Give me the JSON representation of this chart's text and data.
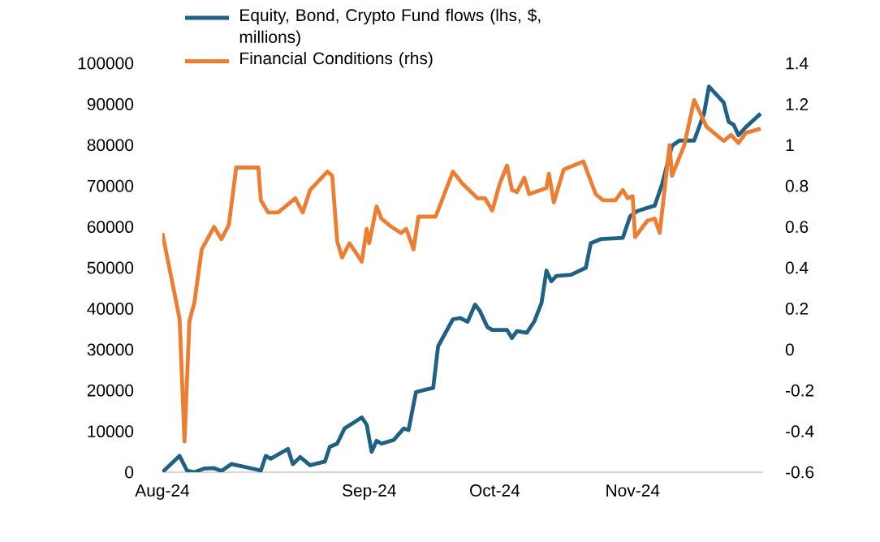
{
  "chart_data": {
    "type": "line",
    "categories": [
      "Aug-24",
      null,
      null,
      null,
      null,
      null,
      null,
      null,
      null,
      null,
      null,
      null,
      null,
      null,
      null,
      null,
      null,
      null,
      null,
      null,
      null,
      null,
      null,
      null,
      null,
      null,
      null,
      null,
      null,
      null,
      null,
      null,
      null,
      null,
      null,
      null,
      null,
      null,
      null,
      null,
      null,
      null,
      null,
      null,
      null,
      null,
      null,
      null,
      null,
      null,
      null,
      null,
      null,
      null,
      null,
      null,
      null,
      null,
      null,
      null,
      null,
      null,
      null,
      null,
      null,
      null,
      null,
      null,
      null,
      null,
      null,
      null,
      null,
      null,
      null,
      null,
      null,
      null,
      null,
      null,
      null,
      null,
      null,
      null,
      "Sep-24",
      null,
      null,
      null,
      null,
      null,
      null,
      null,
      null,
      null,
      null,
      null,
      null,
      null,
      null,
      null,
      null,
      null,
      null,
      null,
      null,
      null,
      null,
      null,
      null,
      null,
      null,
      null,
      null,
      null,
      null,
      null,
      null,
      null,
      null,
      null,
      null,
      null,
      null,
      null,
      null,
      null,
      null,
      null,
      null,
      null,
      null,
      null,
      null,
      null,
      null,
      "Oct-24",
      null,
      null,
      null,
      null,
      null,
      null,
      null,
      null,
      null,
      null,
      null,
      null,
      null,
      null,
      null,
      null,
      null,
      null,
      null,
      null,
      null,
      null,
      null,
      null,
      null,
      null,
      null,
      null,
      null,
      null,
      null,
      null,
      null,
      null,
      null,
      null,
      null,
      null,
      null,
      null,
      null,
      null,
      null,
      null,
      null,
      null,
      null,
      null,
      null,
      null,
      null,
      null,
      null,
      null,
      null,
      "Nov-24",
      null,
      null,
      null,
      null,
      null,
      null,
      null,
      null,
      null,
      null,
      null,
      null,
      null,
      null,
      null,
      null,
      null,
      null,
      null,
      null,
      null,
      null,
      null,
      null,
      null,
      null,
      null,
      null,
      null,
      null,
      null,
      null,
      null,
      null,
      null,
      null,
      null,
      null,
      null,
      null,
      null,
      null,
      null,
      null,
      null,
      null,
      null,
      null,
      null,
      null,
      null,
      null,
      null
    ],
    "ylim": [
      0,
      100000
    ],
    "yticks": [
      0,
      10000,
      20000,
      30000,
      40000,
      50000,
      60000,
      70000,
      80000,
      90000,
      100000
    ],
    "y2lim": [
      -0.6,
      1.4
    ],
    "y2ticks": [
      -0.6,
      -0.4,
      -0.2,
      0,
      0.2,
      0.4,
      0.6,
      0.8,
      1,
      1.2,
      1.4
    ],
    "legend": "top left",
    "series": [
      {
        "name": "Equity, Bond, Crypto Fund flows (lhs, $, millions)",
        "color": "#1f6185",
        "values": [
          0,
          null,
          null,
          null,
          null,
          null,
          null,
          4000,
          null,
          null,
          400,
          null,
          null,
          0,
          null,
          null,
          null,
          900,
          null,
          null,
          null,
          1000,
          null,
          null,
          300,
          null,
          null,
          null,
          2000,
          null,
          null,
          null,
          null,
          null,
          null,
          null,
          null,
          null,
          700,
          null,
          400,
          null,
          4000,
          null,
          3300,
          null,
          null,
          null,
          null,
          null,
          null,
          5700,
          null,
          2000,
          null,
          null,
          3700,
          null,
          null,
          null,
          1700,
          null,
          null,
          null,
          null,
          null,
          2600,
          null,
          6200,
          null,
          null,
          7000,
          null,
          null,
          10700,
          null,
          null,
          null,
          null,
          null,
          null,
          13400,
          null,
          11600,
          null,
          5000,
          null,
          7700,
          null,
          7000,
          null,
          null,
          null,
          null,
          7900,
          null,
          null,
          null,
          10700,
          null,
          10300,
          null,
          null,
          19600,
          null,
          null,
          null,
          20200,
          null,
          null,
          20600,
          null,
          30800,
          null,
          null,
          null,
          null,
          null,
          37400,
          null,
          null,
          37700,
          null,
          null,
          36800,
          null,
          null,
          41000,
          null,
          39400,
          null,
          null,
          35500,
          null,
          34800,
          null,
          null,
          null,
          null,
          null,
          34800,
          null,
          32800,
          null,
          34500,
          null,
          null,
          null,
          34100,
          null,
          null,
          36800,
          null,
          null,
          41400,
          null,
          49300,
          null,
          46700,
          null,
          48000,
          null,
          null,
          null,
          null,
          null,
          48300,
          null,
          null,
          null,
          null,
          null,
          50000,
          null,
          56000,
          null,
          null,
          null,
          57000,
          null,
          null,
          null,
          null,
          null,
          null,
          null,
          null,
          57300,
          null,
          null,
          62600,
          null,
          null,
          63900,
          null,
          null,
          null,
          null,
          null,
          null,
          65200,
          null,
          null,
          70500,
          null,
          null,
          null,
          79800,
          null,
          null,
          81100,
          null,
          null,
          null,
          null,
          null,
          81100,
          null,
          null,
          null,
          87700,
          null,
          94300,
          null,
          null,
          null,
          null,
          null,
          90400,
          null,
          85700,
          null,
          85000,
          null,
          82400,
          null,
          null,
          84400,
          null,
          null,
          null,
          null,
          null,
          87700,
          null
        ]
      },
      {
        "name": "Financial Conditions (rhs)",
        "color": "#ed7d31",
        "axis": "y2",
        "values": [
          0.57,
          null,
          null,
          null,
          null,
          null,
          null,
          0.15,
          null,
          -0.45,
          null,
          0.14,
          null,
          0.23,
          null,
          null,
          0.49,
          null,
          null,
          null,
          null,
          0.6,
          null,
          null,
          0.54,
          null,
          null,
          0.61,
          null,
          null,
          0.89,
          null,
          null,
          null,
          null,
          null,
          null,
          null,
          null,
          0.89,
          0.73,
          null,
          null,
          0.67,
          null,
          null,
          null,
          0.67,
          null,
          null,
          0.7,
          null,
          null,
          null,
          0.74,
          null,
          null,
          0.67,
          null,
          null,
          0.78,
          null,
          null,
          null,
          null,
          null,
          null,
          0.87,
          null,
          0.85,
          null,
          0.53,
          null,
          0.45,
          null,
          null,
          0.52,
          null,
          null,
          null,
          null,
          0.43,
          null,
          0.59,
          0.52,
          null,
          null,
          0.7,
          null,
          0.64,
          null,
          null,
          null,
          0.6,
          null,
          null,
          null,
          0.57,
          null,
          0.59,
          0.56,
          null,
          0.49,
          null,
          0.65,
          null,
          null,
          null,
          null,
          0.65,
          null,
          0.65,
          null,
          null,
          null,
          null,
          null,
          null,
          0.87,
          null,
          null,
          null,
          0.81,
          null,
          null,
          null,
          null,
          null,
          0.74,
          null,
          null,
          0.74,
          null,
          null,
          0.68,
          null,
          null,
          0.81,
          null,
          null,
          0.9,
          null,
          0.78,
          null,
          0.77,
          null,
          null,
          0.84,
          null,
          0.76,
          null,
          null,
          null,
          null,
          null,
          null,
          0.79,
          0.86,
          null,
          0.72,
          null,
          null,
          null,
          0.88,
          null,
          null,
          null,
          null,
          null,
          null,
          null,
          0.92,
          null,
          null,
          null,
          null,
          0.76,
          null,
          null,
          0.73,
          null,
          null,
          null,
          null,
          0.73,
          null,
          null,
          0.78,
          null,
          0.74,
          null,
          0.75,
          0.55,
          null,
          null,
          null,
          null,
          0.63,
          null,
          null,
          0.64,
          null,
          0.57,
          null,
          null,
          null,
          1.0,
          0.85,
          null,
          null,
          0.94,
          null,
          1.0,
          null,
          null,
          null,
          1.22,
          null,
          null,
          null,
          null,
          1.09,
          null,
          null,
          null,
          null,
          null,
          null,
          1.02,
          null,
          null,
          1.05,
          null,
          null,
          1.01,
          null,
          null,
          1.06,
          null,
          null,
          null,
          null,
          null,
          1.08,
          null
        ]
      }
    ]
  }
}
